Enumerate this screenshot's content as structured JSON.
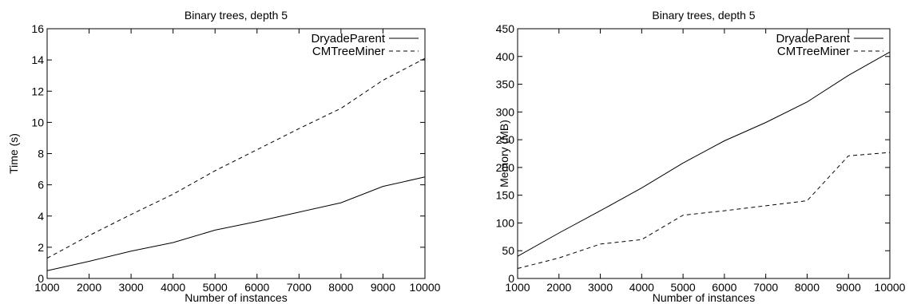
{
  "chart_data": [
    {
      "type": "line",
      "title": "Binary trees, depth 5",
      "xlabel": "Number of instances",
      "ylabel": "Time (s)",
      "xlim": [
        1000,
        10000
      ],
      "ylim": [
        0,
        16
      ],
      "xticks": [
        1000,
        2000,
        3000,
        4000,
        5000,
        6000,
        7000,
        8000,
        9000,
        10000
      ],
      "yticks": [
        0,
        2,
        4,
        6,
        8,
        10,
        12,
        14,
        16
      ],
      "legend_position": "top-right",
      "grid": false,
      "x": [
        1000,
        2000,
        3000,
        4000,
        5000,
        6000,
        7000,
        8000,
        9000,
        10000
      ],
      "series": [
        {
          "name": "DryadeParent",
          "style": "solid",
          "values": [
            0.5,
            1.1,
            1.75,
            2.3,
            3.1,
            3.65,
            4.25,
            4.85,
            5.9,
            6.5
          ]
        },
        {
          "name": "CMTreeMiner",
          "style": "dashed",
          "values": [
            1.3,
            2.75,
            4.1,
            5.4,
            6.9,
            8.25,
            9.6,
            10.9,
            12.7,
            14.1
          ]
        }
      ]
    },
    {
      "type": "line",
      "title": "Binary trees, depth 5",
      "xlabel": "Number of instances",
      "ylabel": "Memory (MB)",
      "xlim": [
        1000,
        10000
      ],
      "ylim": [
        0,
        450
      ],
      "xticks": [
        1000,
        2000,
        3000,
        4000,
        5000,
        6000,
        7000,
        8000,
        9000,
        10000
      ],
      "yticks": [
        0,
        50,
        100,
        150,
        200,
        250,
        300,
        350,
        400,
        450
      ],
      "legend_position": "top-right",
      "grid": false,
      "x": [
        1000,
        2000,
        3000,
        4000,
        5000,
        6000,
        7000,
        8000,
        9000,
        10000
      ],
      "series": [
        {
          "name": "DryadeParent",
          "style": "solid",
          "values": [
            40,
            82,
            122,
            163,
            208,
            248,
            281,
            318,
            366,
            408
          ]
        },
        {
          "name": "CMTreeMiner",
          "style": "dashed",
          "values": [
            18,
            37,
            62,
            70,
            114,
            122,
            131,
            140,
            221,
            227
          ]
        }
      ]
    }
  ]
}
